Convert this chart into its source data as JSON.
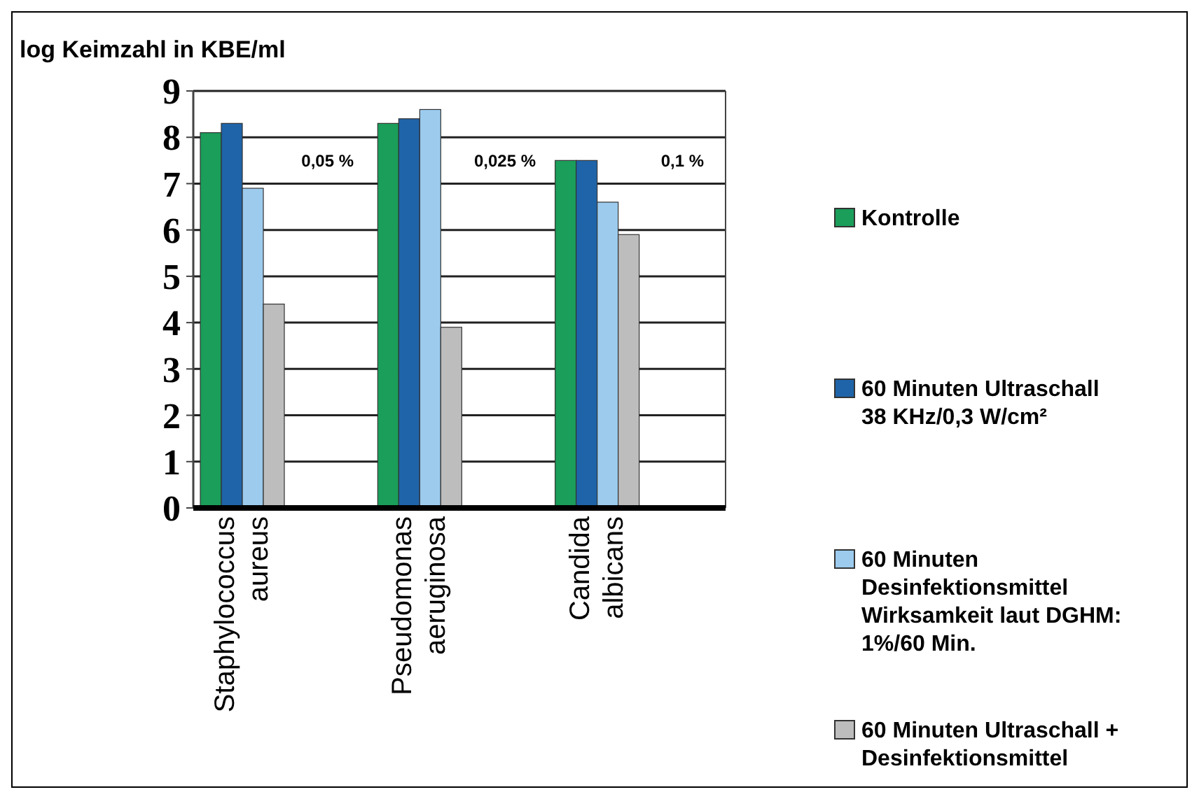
{
  "chart_data": {
    "type": "bar",
    "ylabel": "log Keimzahl in KBE/ml",
    "categories": [
      "Staphylococcus aureus",
      "Pseudomonas aeruginosa",
      "Candida albicans"
    ],
    "series": [
      {
        "name": "Kontrolle",
        "color": "#1a9e5a",
        "values": [
          8.1,
          8.3,
          7.5
        ]
      },
      {
        "name": "60 Minuten Ultraschall 38 KHz/0,3 W/cm²",
        "color": "#1f64a8",
        "values": [
          8.3,
          8.4,
          7.5
        ]
      },
      {
        "name": "60 Minuten Desinfektionsmittel Wirksamkeit laut DGHM: 1%/60 Min.",
        "color": "#9ccbee",
        "values": [
          6.9,
          8.6,
          6.6
        ]
      },
      {
        "name": "60 Minuten Ultraschall + Desinfektionsmittel",
        "color": "#bdbdbd",
        "values": [
          4.4,
          3.9,
          5.9
        ]
      }
    ],
    "annotations": [
      "0,05 %",
      "0,025 %",
      "0,1 %"
    ],
    "ylim": [
      0,
      9
    ],
    "yticks": [
      0,
      1,
      2,
      3,
      4,
      5,
      6,
      7,
      8,
      9
    ],
    "grid": "y",
    "legend": "right"
  }
}
